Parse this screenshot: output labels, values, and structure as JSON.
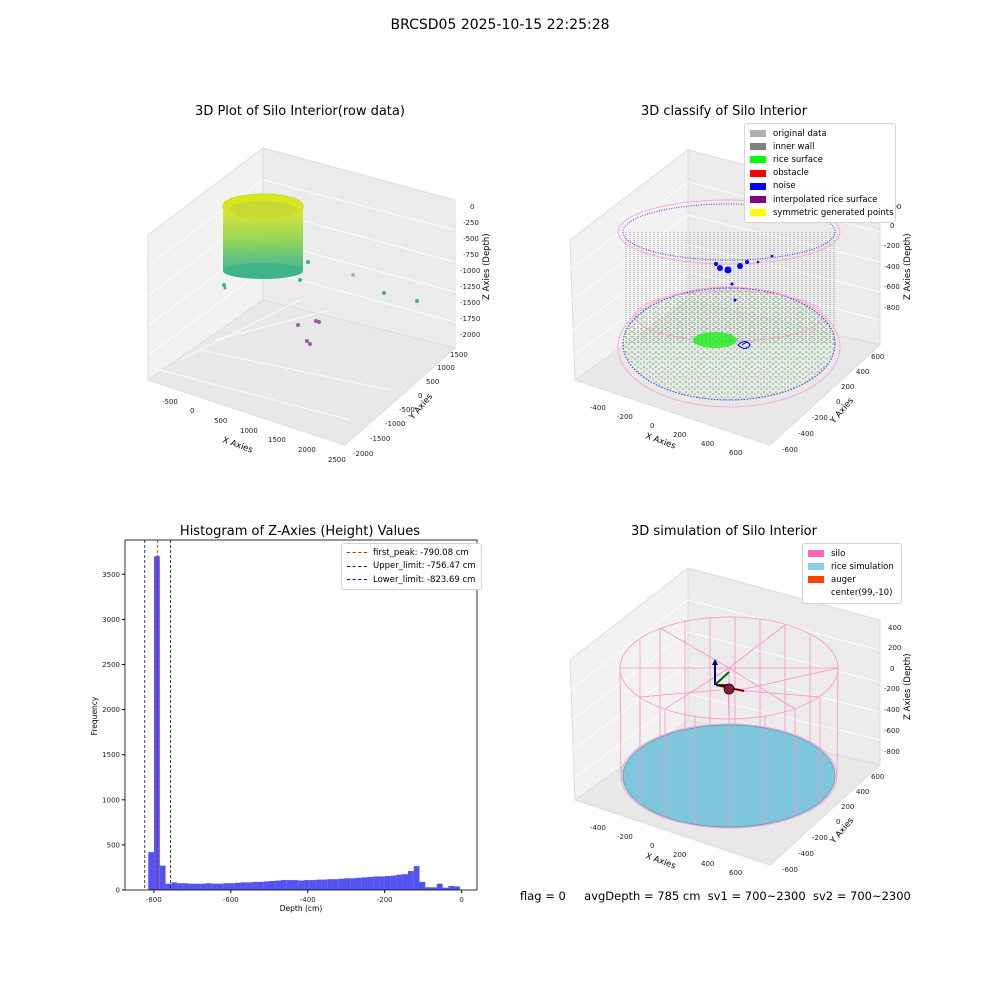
{
  "figure": {
    "title": "BRCSD05 2025-10-15 22:25:28",
    "status": {
      "flag": "flag = 0",
      "avg_depth": "avgDepth = 785 cm",
      "sv1": "sv1 = 700~2300",
      "sv2": "sv2 = 700~2300"
    }
  },
  "panels": {
    "raw": {
      "title": "3D Plot of Silo Interior(row data)",
      "xlabel": "X Axies",
      "ylabel": "Y Axies",
      "zlabel": "Z Axies (Depth)",
      "xticks": [
        "-500",
        "0",
        "500",
        "1000",
        "1500",
        "2000",
        "2500"
      ],
      "yticks": [
        "-2000",
        "-1500",
        "-1000",
        "-500",
        "0",
        "500",
        "1000",
        "1500"
      ],
      "zticks": [
        "0",
        "-250",
        "-500",
        "-750",
        "-1000",
        "-1250",
        "-1500",
        "-1750",
        "-2000"
      ]
    },
    "classify": {
      "title": "3D classify of Silo Interior",
      "xlabel": "X Axies",
      "ylabel": "Y Axies",
      "zlabel": "Z Axies (Depth)",
      "xticks": [
        "-400",
        "-200",
        "0",
        "200",
        "400",
        "600"
      ],
      "yticks": [
        "-600",
        "-400",
        "-200",
        "0",
        "200",
        "400",
        "600"
      ],
      "zticks": [
        "200",
        "0",
        "-200",
        "-400",
        "-600",
        "-800"
      ],
      "legend": [
        {
          "label": "original data",
          "color": "#b0b0b0"
        },
        {
          "label": "inner wall",
          "color": "#808080"
        },
        {
          "label": "rice surface",
          "color": "#00ff00"
        },
        {
          "label": "obstacle",
          "color": "#ff0000"
        },
        {
          "label": "noise",
          "color": "#0000ff"
        },
        {
          "label": "interpolated rice surface",
          "color": "#800080"
        },
        {
          "label": "symmetric generated points",
          "color": "#ffff00"
        }
      ]
    },
    "simulation": {
      "title": "3D simulation of Silo Interior",
      "xlabel": "X Axies",
      "ylabel": "Y Axies",
      "zlabel": "Z Axies (Depth)",
      "xticks": [
        "-400",
        "-200",
        "0",
        "200",
        "400",
        "600"
      ],
      "yticks": [
        "-600",
        "-400",
        "-200",
        "0",
        "200",
        "400",
        "600"
      ],
      "zticks": [
        "400",
        "200",
        "0",
        "-200",
        "-400",
        "-600",
        "-800"
      ],
      "legend": [
        {
          "label": "silo",
          "color": "#ff69b4"
        },
        {
          "label": "rice simulation",
          "color": "#87ceeb"
        },
        {
          "label": "auger",
          "color": "#ff4500"
        },
        {
          "label": "center(99,-10)",
          "color": "#ffffff"
        }
      ]
    }
  },
  "chart_data": [
    {
      "type": "bar",
      "title": "Histogram of Z-Axies (Height) Values",
      "xlabel": "Depth (cm)",
      "ylabel": "Frequency",
      "xlim": [
        -875,
        40
      ],
      "ylim": [
        0,
        3880
      ],
      "xticks": [
        -800,
        -600,
        -400,
        -200,
        0
      ],
      "yticks": [
        0,
        500,
        1000,
        1500,
        2000,
        2500,
        3000,
        3500
      ],
      "color": "#4a4af0",
      "bins": [
        {
          "x": -807,
          "y": 420
        },
        {
          "x": -792,
          "y": 3700
        },
        {
          "x": -777,
          "y": 270
        },
        {
          "x": -762,
          "y": 70
        },
        {
          "x": -747,
          "y": 85
        },
        {
          "x": -732,
          "y": 75
        },
        {
          "x": -717,
          "y": 75
        },
        {
          "x": -702,
          "y": 70
        },
        {
          "x": -687,
          "y": 70
        },
        {
          "x": -672,
          "y": 70
        },
        {
          "x": -657,
          "y": 75
        },
        {
          "x": -642,
          "y": 70
        },
        {
          "x": -627,
          "y": 70
        },
        {
          "x": -612,
          "y": 75
        },
        {
          "x": -597,
          "y": 75
        },
        {
          "x": -582,
          "y": 80
        },
        {
          "x": -567,
          "y": 85
        },
        {
          "x": -552,
          "y": 85
        },
        {
          "x": -537,
          "y": 90
        },
        {
          "x": -522,
          "y": 90
        },
        {
          "x": -507,
          "y": 95
        },
        {
          "x": -492,
          "y": 100
        },
        {
          "x": -477,
          "y": 105
        },
        {
          "x": -462,
          "y": 110
        },
        {
          "x": -447,
          "y": 110
        },
        {
          "x": -432,
          "y": 110
        },
        {
          "x": -417,
          "y": 105
        },
        {
          "x": -402,
          "y": 110
        },
        {
          "x": -387,
          "y": 110
        },
        {
          "x": -372,
          "y": 115
        },
        {
          "x": -357,
          "y": 115
        },
        {
          "x": -342,
          "y": 120
        },
        {
          "x": -327,
          "y": 120
        },
        {
          "x": -312,
          "y": 125
        },
        {
          "x": -297,
          "y": 130
        },
        {
          "x": -282,
          "y": 130
        },
        {
          "x": -267,
          "y": 135
        },
        {
          "x": -252,
          "y": 140
        },
        {
          "x": -237,
          "y": 145
        },
        {
          "x": -222,
          "y": 150
        },
        {
          "x": -207,
          "y": 150
        },
        {
          "x": -192,
          "y": 155
        },
        {
          "x": -177,
          "y": 160
        },
        {
          "x": -162,
          "y": 170
        },
        {
          "x": -147,
          "y": 175
        },
        {
          "x": -132,
          "y": 210
        },
        {
          "x": -117,
          "y": 265
        },
        {
          "x": -102,
          "y": 90
        },
        {
          "x": -87,
          "y": 30
        },
        {
          "x": -72,
          "y": 30
        },
        {
          "x": -57,
          "y": 70
        },
        {
          "x": -42,
          "y": 25
        },
        {
          "x": -27,
          "y": 45
        },
        {
          "x": -12,
          "y": 40
        }
      ],
      "bin_width": 15,
      "lines": [
        {
          "label": "first_peak: -790.08 cm",
          "x": -790.08,
          "color": "#ff0000"
        },
        {
          "label": "Upper_limit: -756.47 cm",
          "x": -756.47,
          "color": "#0000aa"
        },
        {
          "label": "Lower_limit: -823.69 cm",
          "x": -823.69,
          "color": "#0000aa"
        }
      ]
    }
  ]
}
